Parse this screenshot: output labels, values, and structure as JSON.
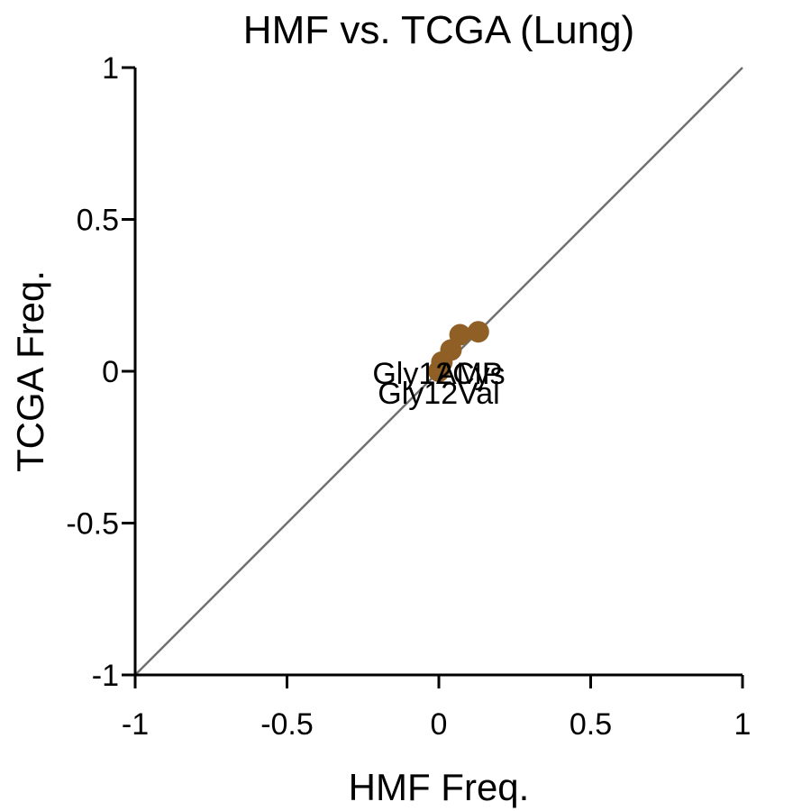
{
  "chart_data": {
    "type": "scatter",
    "title": "HMF vs. TCGA (Lung)",
    "xlabel": "HMF Freq.",
    "ylabel": "TCGA Freq.",
    "xlim": [
      -1,
      1
    ],
    "ylim": [
      -1,
      1
    ],
    "xticks": [
      -1,
      -0.5,
      0,
      0.5,
      1
    ],
    "xtick_labels": [
      "-1",
      "-0.5",
      "0",
      "0.5",
      "1"
    ],
    "yticks": [
      -1,
      -0.5,
      0,
      0.5,
      1
    ],
    "ytick_labels": [
      "-1",
      "-0.5",
      "0",
      "0.5",
      "1"
    ],
    "grid": false,
    "reference_line": "y = x",
    "marker_color": "#8f5f25",
    "reference_line_color": "#707070",
    "points": [
      {
        "x": 0.13,
        "y": 0.13
      },
      {
        "x": 0.07,
        "y": 0.12
      },
      {
        "x": 0.04,
        "y": 0.07
      },
      {
        "x": 0.01,
        "y": 0.03
      },
      {
        "x": 0.0,
        "y": 0.0
      }
    ],
    "annotations": [
      {
        "text": "Gly12Cys",
        "x": 0.0,
        "y": 0.0
      },
      {
        "text": "AMP",
        "x": 0.1,
        "y": 0.0
      },
      {
        "text": "Gly12Val",
        "x": 0.0,
        "y": -0.065
      }
    ]
  }
}
